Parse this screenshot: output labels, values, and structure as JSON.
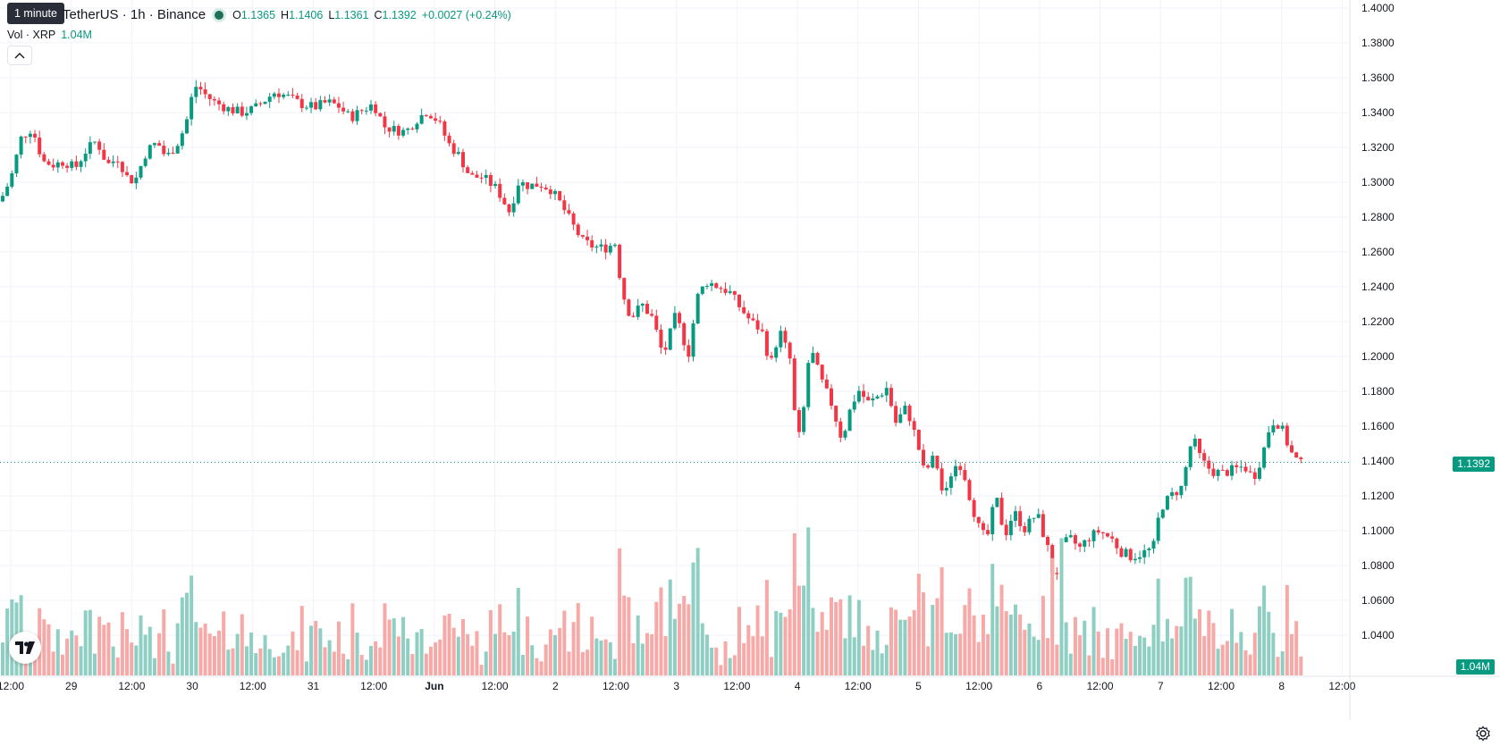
{
  "header": {
    "symbol_title": "TetherUS · 1h · Binance",
    "ohlc": {
      "o_label": "O",
      "o": "1.1365",
      "h_label": "H",
      "h": "1.1406",
      "l_label": "L",
      "l": "1.1361",
      "c_label": "C",
      "c": "1.1392"
    },
    "change": "+0.0027 (+0.24%)",
    "tooltip": "1 minute"
  },
  "volume_legend": {
    "label": "Vol · XRP",
    "value": "1.04M"
  },
  "price_badge": "1.1392",
  "volume_badge": "1.04M",
  "colors": {
    "up": "#089981",
    "down": "#f23645",
    "up_vol": "#8fcfc3",
    "down_vol": "#f7a9a7",
    "grid": "#f0f3fa"
  },
  "icons": {
    "collapse": "chevron-up-icon",
    "logo": "tradingview-logo-icon",
    "settings": "settings-gear-icon"
  },
  "chart_data": {
    "type": "candlestick",
    "interval": "1h",
    "y_ticks": [
      "1.4000",
      "1.3800",
      "1.3600",
      "1.3400",
      "1.3200",
      "1.3000",
      "1.2800",
      "1.2600",
      "1.2400",
      "1.2200",
      "1.2000",
      "1.1800",
      "1.1600",
      "1.1400",
      "1.1200",
      "1.1000",
      "1.0800",
      "1.0600",
      "1.0400"
    ],
    "ylim": [
      1.03,
      1.4
    ],
    "x_ticks": [
      "12:00",
      "29",
      "12:00",
      "30",
      "12:00",
      "31",
      "12:00",
      "Jun",
      "12:00",
      "2",
      "12:00",
      "3",
      "12:00",
      "4",
      "12:00",
      "5",
      "12:00",
      "6",
      "12:00",
      "7",
      "12:00",
      "8",
      "12:00"
    ],
    "last_price": 1.1392,
    "price_path": [
      [
        0,
        1.289
      ],
      [
        12,
        1.302
      ],
      [
        24,
        1.326
      ],
      [
        36,
        1.331
      ],
      [
        48,
        1.312
      ],
      [
        60,
        1.31
      ],
      [
        72,
        1.312
      ],
      [
        84,
        1.308
      ],
      [
        96,
        1.318
      ],
      [
        108,
        1.324
      ],
      [
        120,
        1.31
      ],
      [
        132,
        1.314
      ],
      [
        144,
        1.301
      ],
      [
        152,
        1.302
      ],
      [
        164,
        1.318
      ],
      [
        176,
        1.323
      ],
      [
        186,
        1.314
      ],
      [
        198,
        1.322
      ],
      [
        208,
        1.333
      ],
      [
        212,
        1.345
      ],
      [
        220,
        1.356
      ],
      [
        230,
        1.35
      ],
      [
        240,
        1.346
      ],
      [
        256,
        1.342
      ],
      [
        270,
        1.34
      ],
      [
        284,
        1.342
      ],
      [
        296,
        1.347
      ],
      [
        308,
        1.352
      ],
      [
        322,
        1.349
      ],
      [
        336,
        1.345
      ],
      [
        352,
        1.343
      ],
      [
        366,
        1.346
      ],
      [
        378,
        1.344
      ],
      [
        392,
        1.337
      ],
      [
        404,
        1.341
      ],
      [
        418,
        1.345
      ],
      [
        430,
        1.332
      ],
      [
        442,
        1.33
      ],
      [
        454,
        1.329
      ],
      [
        466,
        1.336
      ],
      [
        478,
        1.341
      ],
      [
        490,
        1.335
      ],
      [
        502,
        1.322
      ],
      [
        514,
        1.315
      ],
      [
        526,
        1.303
      ],
      [
        540,
        1.303
      ],
      [
        556,
        1.296
      ],
      [
        570,
        1.283
      ],
      [
        580,
        1.3
      ],
      [
        592,
        1.298
      ],
      [
        604,
        1.299
      ],
      [
        616,
        1.296
      ],
      [
        628,
        1.287
      ],
      [
        640,
        1.276
      ],
      [
        652,
        1.266
      ],
      [
        664,
        1.263
      ],
      [
        676,
        1.262
      ],
      [
        688,
        1.265
      ],
      [
        696,
        1.237
      ],
      [
        706,
        1.222
      ],
      [
        718,
        1.23
      ],
      [
        730,
        1.222
      ],
      [
        742,
        1.2
      ],
      [
        756,
        1.224
      ],
      [
        770,
        1.201
      ],
      [
        780,
        1.234
      ],
      [
        790,
        1.243
      ],
      [
        804,
        1.24
      ],
      [
        816,
        1.237
      ],
      [
        828,
        1.228
      ],
      [
        840,
        1.22
      ],
      [
        852,
        1.215
      ],
      [
        862,
        1.195
      ],
      [
        872,
        1.215
      ],
      [
        884,
        1.198
      ],
      [
        892,
        1.148
      ],
      [
        900,
        1.173
      ],
      [
        906,
        1.206
      ],
      [
        918,
        1.187
      ],
      [
        930,
        1.173
      ],
      [
        942,
        1.152
      ],
      [
        950,
        1.168
      ],
      [
        960,
        1.181
      ],
      [
        972,
        1.173
      ],
      [
        984,
        1.178
      ],
      [
        992,
        1.182
      ],
      [
        1002,
        1.162
      ],
      [
        1014,
        1.171
      ],
      [
        1026,
        1.151
      ],
      [
        1034,
        1.133
      ],
      [
        1046,
        1.143
      ],
      [
        1056,
        1.117
      ],
      [
        1066,
        1.137
      ],
      [
        1076,
        1.138
      ],
      [
        1086,
        1.117
      ],
      [
        1096,
        1.1
      ],
      [
        1104,
        1.095
      ],
      [
        1114,
        1.12
      ],
      [
        1124,
        1.097
      ],
      [
        1134,
        1.111
      ],
      [
        1146,
        1.101
      ],
      [
        1160,
        1.11
      ],
      [
        1172,
        1.09
      ],
      [
        1180,
        1.07
      ],
      [
        1188,
        1.092
      ],
      [
        1198,
        1.095
      ],
      [
        1208,
        1.09
      ],
      [
        1218,
        1.096
      ],
      [
        1230,
        1.1
      ],
      [
        1244,
        1.095
      ],
      [
        1254,
        1.088
      ],
      [
        1266,
        1.085
      ],
      [
        1278,
        1.087
      ],
      [
        1290,
        1.09
      ],
      [
        1298,
        1.113
      ],
      [
        1310,
        1.12
      ],
      [
        1322,
        1.125
      ],
      [
        1334,
        1.154
      ],
      [
        1344,
        1.14
      ],
      [
        1356,
        1.134
      ],
      [
        1368,
        1.133
      ],
      [
        1380,
        1.135
      ],
      [
        1392,
        1.137
      ],
      [
        1402,
        1.13
      ],
      [
        1412,
        1.143
      ],
      [
        1422,
        1.163
      ],
      [
        1432,
        1.161
      ],
      [
        1444,
        1.145
      ],
      [
        1454,
        1.138
      ],
      [
        1460,
        1.139
      ]
    ],
    "volume_max_px": 190
  }
}
